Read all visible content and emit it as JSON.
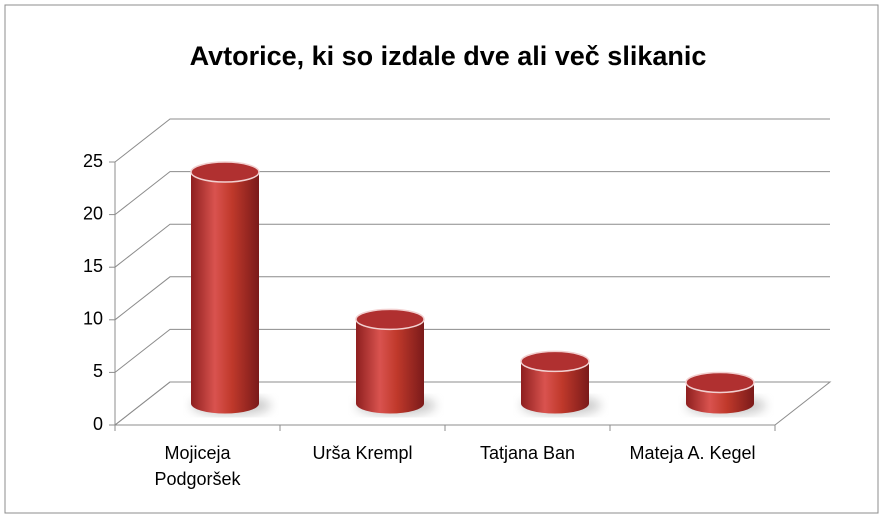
{
  "chart_data": {
    "type": "bar3d",
    "title": "Avtorice, ki so izdale dve ali več slikanic",
    "categories": [
      "Mojiceja Podgoršek",
      "Urša Krempl",
      "Tatjana Ban",
      "Mateja A. Kegel"
    ],
    "values": [
      22,
      8,
      4,
      2
    ],
    "color": "#c0392b",
    "ylim": [
      0,
      25
    ],
    "yticks": [
      0,
      5,
      10,
      15,
      20,
      25
    ],
    "grid": true
  }
}
